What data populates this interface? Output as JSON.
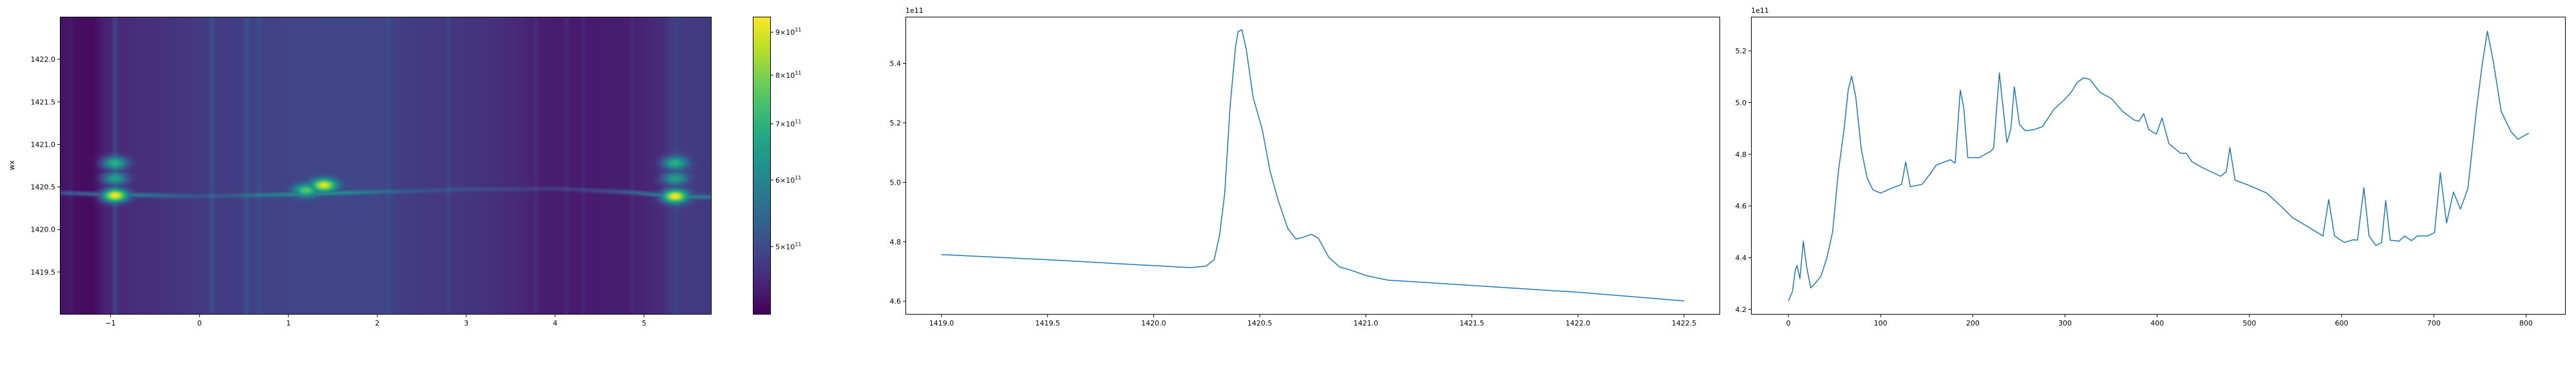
{
  "chart_data": [
    {
      "type": "heatmap",
      "ylabel": "wx",
      "xlabel": "",
      "xlim": [
        -1.57,
        5.76
      ],
      "ylim": [
        1419.0,
        1422.5
      ],
      "x_ticks": [
        "−1",
        "0",
        "1",
        "2",
        "3",
        "4",
        "5"
      ],
      "x_tick_values": [
        -1,
        0,
        1,
        2,
        3,
        4,
        5
      ],
      "y_ticks": [
        "1419.5",
        "1420.0",
        "1420.5",
        "1421.0",
        "1421.5",
        "1422.0"
      ],
      "y_tick_values": [
        1419.5,
        1420.0,
        1420.5,
        1421.0,
        1421.5,
        1422.0
      ],
      "colormap": "viridis",
      "color_scale": "log",
      "colorbar": {
        "range": [
          415000000000.0,
          939000000000.0
        ],
        "tick_values": [
          500000000000.0,
          600000000000.0,
          700000000000.0,
          800000000000.0,
          900000000000.0
        ],
        "tick_mantissas": [
          "5",
          "6",
          "7",
          "8",
          "9"
        ],
        "tick_base": "10",
        "tick_exponent": "11"
      },
      "background_profile_e11": [
        [
          -1.57,
          4.35
        ],
        [
          -1.45,
          4.3
        ],
        [
          -1.2,
          4.25
        ],
        [
          -1.05,
          4.5
        ],
        [
          -0.8,
          4.6
        ],
        [
          -0.5,
          4.65
        ],
        [
          -0.2,
          4.72
        ],
        [
          0,
          4.75
        ],
        [
          0.5,
          4.82
        ],
        [
          1,
          4.88
        ],
        [
          1.5,
          4.92
        ],
        [
          2,
          4.92
        ],
        [
          2.3,
          4.8
        ],
        [
          2.8,
          4.72
        ],
        [
          3.2,
          4.68
        ],
        [
          3.6,
          4.55
        ],
        [
          3.8,
          4.45
        ],
        [
          4.2,
          4.4
        ],
        [
          4.5,
          4.42
        ],
        [
          4.9,
          4.45
        ],
        [
          5.2,
          4.6
        ],
        [
          5.35,
          4.85
        ],
        [
          5.5,
          4.75
        ],
        [
          5.76,
          4.75
        ]
      ],
      "vertical_stripes_e11": [
        [
          -1.45,
          0.1
        ],
        [
          -0.95,
          0.3
        ],
        [
          0.14,
          0.25
        ],
        [
          0.53,
          0.25
        ],
        [
          0.67,
          0.2
        ],
        [
          2.13,
          0.15
        ],
        [
          2.8,
          0.15
        ],
        [
          3.78,
          0.12
        ],
        [
          4.13,
          0.15
        ],
        [
          4.32,
          0.1
        ],
        [
          4.87,
          0.12
        ]
      ],
      "ridge": [
        [
          -1.57,
          1420.43
        ],
        [
          -1,
          1420.41
        ],
        [
          0,
          1420.39
        ],
        [
          1,
          1420.41
        ],
        [
          1.6,
          1420.43
        ],
        [
          3,
          1420.47
        ],
        [
          4,
          1420.48
        ],
        [
          4.8,
          1420.44
        ],
        [
          5.35,
          1420.39
        ],
        [
          5.76,
          1420.38
        ]
      ],
      "peaks": [
        {
          "x": -0.95,
          "y": 1420.4,
          "value_e11": 9.3
        },
        {
          "x": -0.95,
          "y": 1420.6,
          "value_e11": 6.6
        },
        {
          "x": -0.95,
          "y": 1420.78,
          "value_e11": 7.0
        },
        {
          "x": 1.4,
          "y": 1420.52,
          "value_e11": 9.1
        },
        {
          "x": 1.2,
          "y": 1420.46,
          "value_e11": 7.6
        },
        {
          "x": 5.35,
          "y": 1420.39,
          "value_e11": 9.3
        },
        {
          "x": 5.35,
          "y": 1420.6,
          "value_e11": 6.6
        },
        {
          "x": 5.35,
          "y": 1420.78,
          "value_e11": 7.0
        }
      ]
    },
    {
      "type": "line",
      "offset_label": "1e11",
      "xlim": [
        1418.83,
        1422.67
      ],
      "ylim": [
        4.555,
        5.557
      ],
      "x_ticks": [
        "1419.0",
        "1419.5",
        "1420.0",
        "1420.5",
        "1421.0",
        "1421.5",
        "1422.0",
        "1422.5"
      ],
      "x_tick_values": [
        1419.0,
        1419.5,
        1420.0,
        1420.5,
        1421.0,
        1421.5,
        1422.0,
        1422.5
      ],
      "y_ticks": [
        "4.6",
        "4.8",
        "5.0",
        "5.2",
        "5.4"
      ],
      "y_tick_values": [
        4.6,
        4.8,
        5.0,
        5.2,
        5.4
      ],
      "color": "#1f77b4",
      "x": [
        1419.0,
        1419.516,
        1419.995,
        1420.171,
        1420.247,
        1420.285,
        1420.31,
        1420.335,
        1420.36,
        1420.385,
        1420.398,
        1420.416,
        1420.436,
        1420.469,
        1420.511,
        1420.549,
        1420.587,
        1420.632,
        1420.67,
        1420.7,
        1420.743,
        1420.776,
        1420.826,
        1420.877,
        1420.927,
        1421.003,
        1421.103,
        1421.501,
        1422.0,
        1422.5
      ],
      "y": [
        4.757,
        4.739,
        4.72,
        4.713,
        4.718,
        4.74,
        4.82,
        4.964,
        5.253,
        5.451,
        5.507,
        5.513,
        5.448,
        5.285,
        5.18,
        5.036,
        4.939,
        4.845,
        4.809,
        4.814,
        4.825,
        4.812,
        4.747,
        4.715,
        4.705,
        4.686,
        4.671,
        4.653,
        4.63,
        4.601
      ]
    },
    {
      "type": "line",
      "offset_label": "1e11",
      "xlim": [
        -40.5,
        843
      ],
      "ylim": [
        4.18,
        5.332
      ],
      "x_ticks": [
        "0",
        "100",
        "200",
        "300",
        "400",
        "500",
        "600",
        "700",
        "800"
      ],
      "x_tick_values": [
        0,
        100,
        200,
        300,
        400,
        500,
        600,
        700,
        800
      ],
      "y_ticks": [
        "4.2",
        "4.4",
        "4.6",
        "4.8",
        "5.0",
        "5.2"
      ],
      "y_tick_values": [
        4.2,
        4.4,
        4.6,
        4.8,
        5.0,
        5.2
      ],
      "color": "#1f77b4",
      "x": [
        0,
        4.4,
        7.5,
        9.4,
        12.5,
        16.2,
        20,
        24.3,
        29.3,
        35.5,
        41.8,
        48,
        54.2,
        60.5,
        64.8,
        68.6,
        73,
        79.2,
        85.4,
        91.6,
        99.8,
        113.5,
        122.8,
        127.2,
        132.2,
        144.6,
        154,
        160.2,
        175.8,
        180.8,
        186.4,
        190.1,
        194.5,
        207,
        219.5,
        222.6,
        228.8,
        232,
        237,
        241.3,
        245,
        250.6,
        256.9,
        266.2,
        275.6,
        288,
        299.3,
        306.7,
        313,
        320.4,
        326.7,
        337.9,
        350.4,
        362.8,
        375.3,
        380.3,
        385.3,
        390.9,
        399,
        405.2,
        412.7,
        425.2,
        431.5,
        437.7,
        450.2,
        468.8,
        475,
        478.8,
        484.4,
        500,
        518.7,
        531.2,
        546.8,
        562.3,
        579.8,
        586,
        592.3,
        602.9,
        612.2,
        617.2,
        624.1,
        629.7,
        637.2,
        643.4,
        647.8,
        652.7,
        662.1,
        668.3,
        675.8,
        682,
        693.3,
        700.7,
        707,
        713.8,
        721.3,
        728.8,
        736.9,
        746.3,
        752.5,
        758.1,
        765,
        773.1,
        783.7,
        791.2,
        803
      ],
      "y": [
        4.233,
        4.269,
        4.352,
        4.37,
        4.319,
        4.464,
        4.36,
        4.283,
        4.302,
        4.33,
        4.4,
        4.5,
        4.733,
        4.9,
        5.048,
        5.102,
        5.023,
        4.816,
        4.708,
        4.663,
        4.65,
        4.671,
        4.683,
        4.77,
        4.675,
        4.683,
        4.725,
        4.758,
        4.779,
        4.766,
        5.048,
        4.982,
        4.787,
        4.787,
        4.812,
        4.824,
        5.115,
        5.007,
        4.845,
        4.899,
        5.061,
        4.915,
        4.891,
        4.895,
        4.907,
        4.974,
        5.011,
        5.04,
        5.077,
        5.096,
        5.09,
        5.04,
        5.015,
        4.965,
        4.932,
        4.928,
        4.957,
        4.895,
        4.878,
        4.94,
        4.841,
        4.804,
        4.804,
        4.771,
        4.746,
        4.715,
        4.733,
        4.826,
        4.7,
        4.679,
        4.65,
        4.609,
        4.555,
        4.522,
        4.484,
        4.625,
        4.484,
        4.459,
        4.469,
        4.468,
        4.671,
        4.484,
        4.447,
        4.459,
        4.621,
        4.468,
        4.464,
        4.484,
        4.466,
        4.484,
        4.484,
        4.497,
        4.729,
        4.534,
        4.654,
        4.588,
        4.667,
        4.974,
        5.148,
        5.276,
        5.148,
        4.965,
        4.887,
        4.858,
        4.882
      ]
    }
  ]
}
